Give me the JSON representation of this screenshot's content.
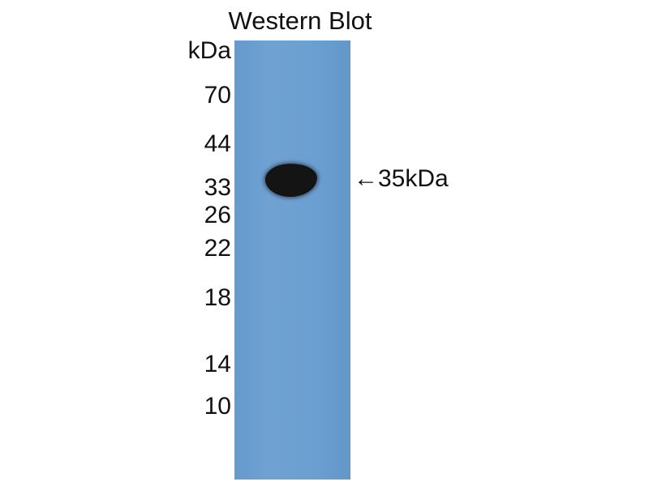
{
  "title": "Western Blot",
  "unit_label": "kDa",
  "markers": [
    "70",
    "44",
    "33",
    "26",
    "22",
    "18",
    "14",
    "10"
  ],
  "band_annotation": {
    "arrow": "←",
    "label": "35kDa"
  },
  "colors": {
    "membrane": "#6c9fd1",
    "band": "#141414"
  }
}
